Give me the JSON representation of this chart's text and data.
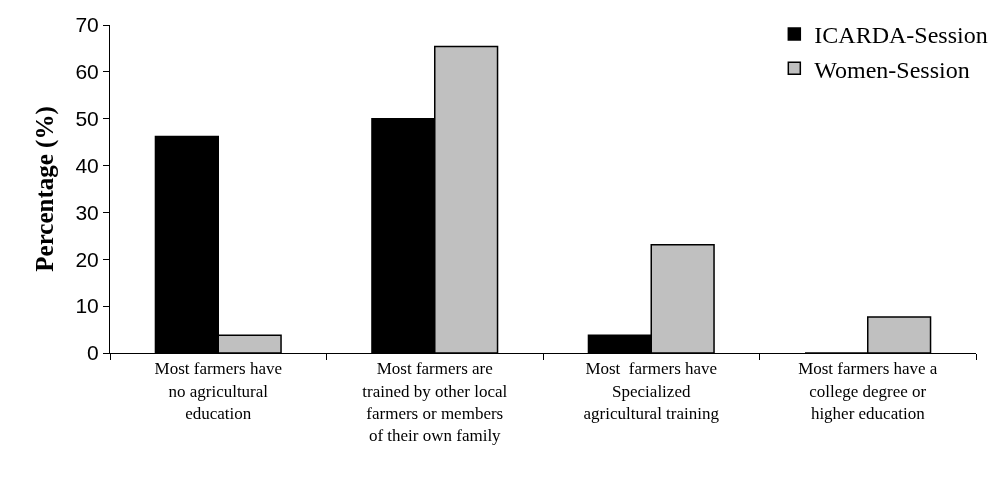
{
  "chart_data": {
    "type": "bar",
    "ylabel": "Percentage (%)",
    "categories": [
      "Most farmers have\nno agricultural\neducation",
      "Most farmers are\ntrained by other local\nfarmers or members\nof their own family",
      "Most  farmers have\nSpecialized\nagricultural training",
      "Most farmers have a\ncollege degree or\nhigher education"
    ],
    "series": [
      {
        "name": "ICARDA-Session",
        "color": "#000000",
        "values": [
          46.2,
          50,
          3.8,
          0
        ]
      },
      {
        "name": "Women-Session",
        "color": "#c0c0c0",
        "values": [
          3.8,
          65.4,
          23.1,
          7.7
        ]
      }
    ],
    "ylim": [
      0,
      70
    ],
    "yticks": [
      0,
      10,
      20,
      30,
      40,
      50,
      60,
      70
    ],
    "grid": false,
    "legend": "top right"
  }
}
